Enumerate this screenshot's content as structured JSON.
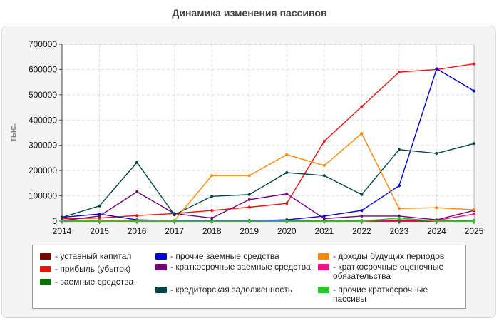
{
  "chart_data": {
    "type": "line",
    "title": "Динамика изменения пассивов",
    "ylabel": "тыс.",
    "xlabel": "",
    "x": [
      2014,
      2015,
      2016,
      2017,
      2018,
      2019,
      2020,
      2021,
      2022,
      2023,
      2024,
      2025
    ],
    "ylim": [
      0,
      700000
    ],
    "yticks": [
      0,
      100000,
      200000,
      300000,
      400000,
      500000,
      600000,
      700000
    ],
    "grid": true,
    "legend_position": "bottom",
    "series": [
      {
        "name": "уставный капитал",
        "color": "#800000",
        "values": [
          0,
          0,
          0,
          0,
          0,
          0,
          0,
          0,
          0,
          0,
          0,
          0
        ]
      },
      {
        "name": "прибыль (убыток)",
        "color": "#ee1111",
        "values": [
          10000,
          12000,
          22000,
          30000,
          42000,
          55000,
          70000,
          316000,
          453000,
          590000,
          600000,
          622000
        ]
      },
      {
        "name": "заемные средства",
        "color": "#007700",
        "values": [
          2000,
          3000,
          2000,
          2000,
          2000,
          2000,
          2000,
          2000,
          2000,
          2000,
          2000,
          2000
        ]
      },
      {
        "name": "прочие заемные средства",
        "color": "#0000dd",
        "values": [
          15000,
          28000,
          5000,
          2000,
          2000,
          2000,
          5000,
          20000,
          42000,
          140000,
          603000,
          515000
        ]
      },
      {
        "name": "краткосрочные заемные средства",
        "color": "#770077",
        "values": [
          2000,
          20000,
          116000,
          30000,
          12000,
          85000,
          108000,
          10000,
          20000,
          20000,
          5000,
          42000
        ]
      },
      {
        "name": "кредиторская задолженность",
        "color": "#004444",
        "values": [
          15000,
          60000,
          232000,
          25000,
          98000,
          105000,
          192000,
          180000,
          105000,
          283000,
          268000,
          307000
        ]
      },
      {
        "name": "доходы будущих периодов",
        "color": "#ff8800",
        "values": [
          0,
          2000,
          2000,
          2000,
          180000,
          180000,
          263000,
          220000,
          347000,
          50000,
          53000,
          45000
        ]
      },
      {
        "name": "краткосрочные оценочные обязательства",
        "color": "#ee1188",
        "values": [
          0,
          0,
          0,
          0,
          0,
          0,
          0,
          0,
          0,
          5000,
          3000,
          28000
        ]
      },
      {
        "name": "прочие краткосрочные пассивы",
        "color": "#22cc22",
        "values": [
          0,
          0,
          0,
          0,
          0,
          0,
          0,
          0,
          0,
          12000,
          0,
          0
        ]
      }
    ]
  },
  "legend": {
    "items": [
      {
        "label": "- уставный капитал",
        "color": "#800000"
      },
      {
        "label": "- прибыль (убыток)",
        "color": "#ee1111"
      },
      {
        "label": "- заемные средства",
        "color": "#007700"
      },
      {
        "label": "- прочие заемные средства",
        "color": "#0000dd"
      },
      {
        "label": "- краткосрочные заемные средства",
        "color": "#770077"
      },
      {
        "label": "- кредиторская задолженность",
        "color": "#004444"
      },
      {
        "label": "- доходы будущих периодов",
        "color": "#ff8800"
      },
      {
        "label": "- краткосрочные оценочные обязательства",
        "color": "#ee1188"
      },
      {
        "label": "- прочие краткосрочные пассивы",
        "color": "#22cc22"
      }
    ]
  }
}
